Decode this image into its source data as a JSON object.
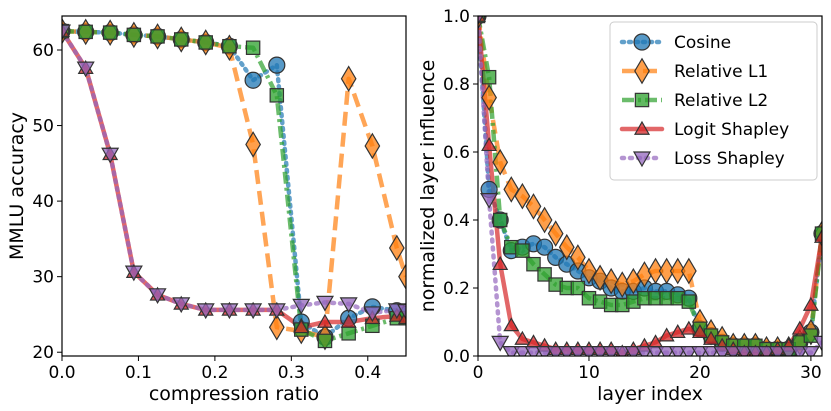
{
  "colors": {
    "Cosine": "#1f77b4",
    "Relative L1": "#ff7f0e",
    "Relative L2": "#2ca02c",
    "Logit Shapley": "#d62728",
    "Loss Shapley": "#9467bd"
  },
  "chart_data": [
    {
      "type": "line",
      "xlabel": "compression ratio",
      "ylabel": "MMLU accuracy",
      "xlim": [
        0,
        0.45
      ],
      "ylim": [
        19.5,
        64.5
      ],
      "xticks": [
        0.0,
        0.1,
        0.2,
        0.3,
        0.4
      ],
      "xtick_labels": [
        "0.0",
        "0.1",
        "0.2",
        "0.3",
        "0.4"
      ],
      "yticks": [
        20,
        30,
        40,
        50,
        60
      ],
      "ytick_labels": [
        "20",
        "30",
        "40",
        "50",
        "60"
      ],
      "grid": false,
      "series": [
        {
          "name": "Cosine",
          "marker": "circle",
          "dash": "dot",
          "x": [
            0,
            0.031,
            0.063,
            0.094,
            0.125,
            0.156,
            0.188,
            0.219,
            0.25,
            0.281,
            0.313,
            0.344,
            0.375,
            0.406,
            0.438,
            0.45
          ],
          "y": [
            62.5,
            62.4,
            62.3,
            62.0,
            61.8,
            61.4,
            61.0,
            60.5,
            56.0,
            58.0,
            24.0,
            22.0,
            24.5,
            26.0,
            25.5,
            25.0
          ]
        },
        {
          "name": "Relative L1",
          "marker": "diamond",
          "dash": "dash",
          "x": [
            0,
            0.031,
            0.063,
            0.094,
            0.125,
            0.156,
            0.188,
            0.219,
            0.25,
            0.281,
            0.313,
            0.344,
            0.375,
            0.406,
            0.438,
            0.45
          ],
          "y": [
            62.5,
            62.4,
            62.3,
            62.0,
            61.8,
            61.4,
            61.0,
            60.3,
            47.5,
            23.3,
            22.8,
            22.0,
            56.2,
            47.3,
            33.8,
            30.0
          ]
        },
        {
          "name": "Relative L2",
          "marker": "square",
          "dash": "dashdot",
          "x": [
            0,
            0.031,
            0.063,
            0.094,
            0.125,
            0.156,
            0.188,
            0.219,
            0.25,
            0.281,
            0.313,
            0.344,
            0.375,
            0.406,
            0.438,
            0.45
          ],
          "y": [
            62.5,
            62.4,
            62.3,
            62.0,
            61.8,
            61.4,
            61.0,
            60.5,
            60.3,
            54.0,
            23.0,
            21.5,
            22.5,
            23.5,
            24.5,
            24.5
          ]
        },
        {
          "name": "Logit Shapley",
          "marker": "triangle-up",
          "dash": "solid",
          "x": [
            0,
            0.031,
            0.063,
            0.094,
            0.125,
            0.156,
            0.188,
            0.219,
            0.25,
            0.281,
            0.313,
            0.344,
            0.375,
            0.406,
            0.438,
            0.45
          ],
          "y": [
            62.5,
            57.6,
            46.2,
            30.6,
            27.6,
            26.4,
            25.6,
            25.6,
            25.6,
            25.6,
            23.3,
            24.0,
            24.0,
            24.5,
            24.8,
            24.5
          ]
        },
        {
          "name": "Loss Shapley",
          "marker": "triangle-down",
          "dash": "dot",
          "x": [
            0,
            0.031,
            0.063,
            0.094,
            0.125,
            0.156,
            0.188,
            0.219,
            0.25,
            0.281,
            0.313,
            0.344,
            0.375,
            0.406,
            0.438,
            0.45
          ],
          "y": [
            62.5,
            57.6,
            46.2,
            30.6,
            27.6,
            26.4,
            25.6,
            25.6,
            25.6,
            25.6,
            26.2,
            26.6,
            26.4,
            25.2,
            25.6,
            25.5
          ]
        }
      ]
    },
    {
      "type": "line",
      "xlabel": "layer index",
      "ylabel": "normalized layer influence",
      "xlim": [
        0,
        31
      ],
      "ylim": [
        0,
        1
      ],
      "xticks": [
        0,
        10,
        20,
        30
      ],
      "xtick_labels": [
        "0",
        "10",
        "20",
        "30"
      ],
      "yticks": [
        0,
        0.2,
        0.4,
        0.6,
        0.8,
        1.0
      ],
      "ytick_labels": [
        "0.0",
        "0.2",
        "0.4",
        "0.6",
        "0.8",
        "1.0"
      ],
      "grid": false,
      "legend": {
        "position": "top-right",
        "entries": [
          "Cosine",
          "Relative L1",
          "Relative L2",
          "Logit Shapley",
          "Loss Shapley"
        ]
      },
      "series": [
        {
          "name": "Cosine",
          "marker": "circle",
          "dash": "dot",
          "x": [
            0,
            1,
            2,
            3,
            4,
            5,
            6,
            7,
            8,
            9,
            10,
            11,
            12,
            13,
            14,
            15,
            16,
            17,
            18,
            19,
            20,
            21,
            22,
            23,
            24,
            25,
            26,
            27,
            28,
            29,
            30,
            31
          ],
          "y": [
            1.0,
            0.49,
            0.4,
            0.31,
            0.32,
            0.33,
            0.32,
            0.29,
            0.27,
            0.25,
            0.23,
            0.22,
            0.2,
            0.19,
            0.19,
            0.2,
            0.19,
            0.19,
            0.18,
            0.17,
            0.08,
            0.06,
            0.04,
            0.03,
            0.03,
            0.03,
            0.02,
            0.02,
            0.02,
            0.04,
            0.07,
            0.36
          ]
        },
        {
          "name": "Relative L1",
          "marker": "diamond",
          "dash": "dash",
          "x": [
            0,
            1,
            2,
            3,
            4,
            5,
            6,
            7,
            8,
            9,
            10,
            11,
            12,
            13,
            14,
            15,
            16,
            17,
            18,
            19,
            20,
            21,
            22,
            23,
            24,
            25,
            26,
            27,
            28,
            29,
            30,
            31
          ],
          "y": [
            1.0,
            0.76,
            0.57,
            0.49,
            0.47,
            0.44,
            0.4,
            0.36,
            0.32,
            0.29,
            0.25,
            0.23,
            0.22,
            0.21,
            0.22,
            0.24,
            0.25,
            0.25,
            0.25,
            0.25,
            0.1,
            0.07,
            0.05,
            0.03,
            0.03,
            0.03,
            0.02,
            0.02,
            0.02,
            0.04,
            0.07,
            0.36
          ]
        },
        {
          "name": "Relative L2",
          "marker": "square",
          "dash": "dashdot",
          "x": [
            0,
            1,
            2,
            3,
            4,
            5,
            6,
            7,
            8,
            9,
            10,
            11,
            12,
            13,
            14,
            15,
            16,
            17,
            18,
            19,
            20,
            21,
            22,
            23,
            24,
            25,
            26,
            27,
            28,
            29,
            30,
            31
          ],
          "y": [
            1.0,
            0.82,
            0.4,
            0.32,
            0.31,
            0.27,
            0.24,
            0.21,
            0.2,
            0.2,
            0.17,
            0.16,
            0.15,
            0.15,
            0.16,
            0.17,
            0.17,
            0.17,
            0.17,
            0.16,
            0.08,
            0.06,
            0.04,
            0.03,
            0.03,
            0.03,
            0.02,
            0.02,
            0.02,
            0.04,
            0.06,
            0.36
          ]
        },
        {
          "name": "Logit Shapley",
          "marker": "triangle-up",
          "dash": "solid",
          "x": [
            0,
            1,
            2,
            3,
            4,
            5,
            6,
            7,
            8,
            9,
            10,
            11,
            12,
            13,
            14,
            15,
            16,
            17,
            18,
            19,
            20,
            21,
            22,
            23,
            24,
            25,
            26,
            27,
            28,
            29,
            30,
            31
          ],
          "y": [
            1.0,
            0.62,
            0.27,
            0.09,
            0.05,
            0.04,
            0.03,
            0.02,
            0.02,
            0.02,
            0.02,
            0.02,
            0.02,
            0.01,
            0.02,
            0.03,
            0.04,
            0.06,
            0.07,
            0.08,
            0.07,
            0.05,
            0.03,
            0.02,
            0.01,
            0.01,
            0.01,
            0.02,
            0.03,
            0.08,
            0.15,
            0.35
          ]
        },
        {
          "name": "Loss Shapley",
          "marker": "triangle-down",
          "dash": "dot",
          "x": [
            0,
            1,
            2,
            3,
            4,
            5,
            6,
            7,
            8,
            9,
            10,
            11,
            12,
            13,
            14,
            15,
            16,
            17,
            18,
            19,
            20,
            21,
            22,
            23,
            24,
            25,
            26,
            27,
            28,
            29,
            30,
            31
          ],
          "y": [
            1.0,
            0.46,
            0.04,
            0.01,
            0.01,
            0.01,
            0.01,
            0.01,
            0.01,
            0.01,
            0.01,
            0.01,
            0.01,
            0.01,
            0.01,
            0.01,
            0.01,
            0.01,
            0.01,
            0.01,
            0.01,
            0.01,
            0.01,
            0.01,
            0.01,
            0.01,
            0.01,
            0.01,
            0.01,
            0.01,
            0.01,
            0.04
          ]
        }
      ]
    }
  ]
}
